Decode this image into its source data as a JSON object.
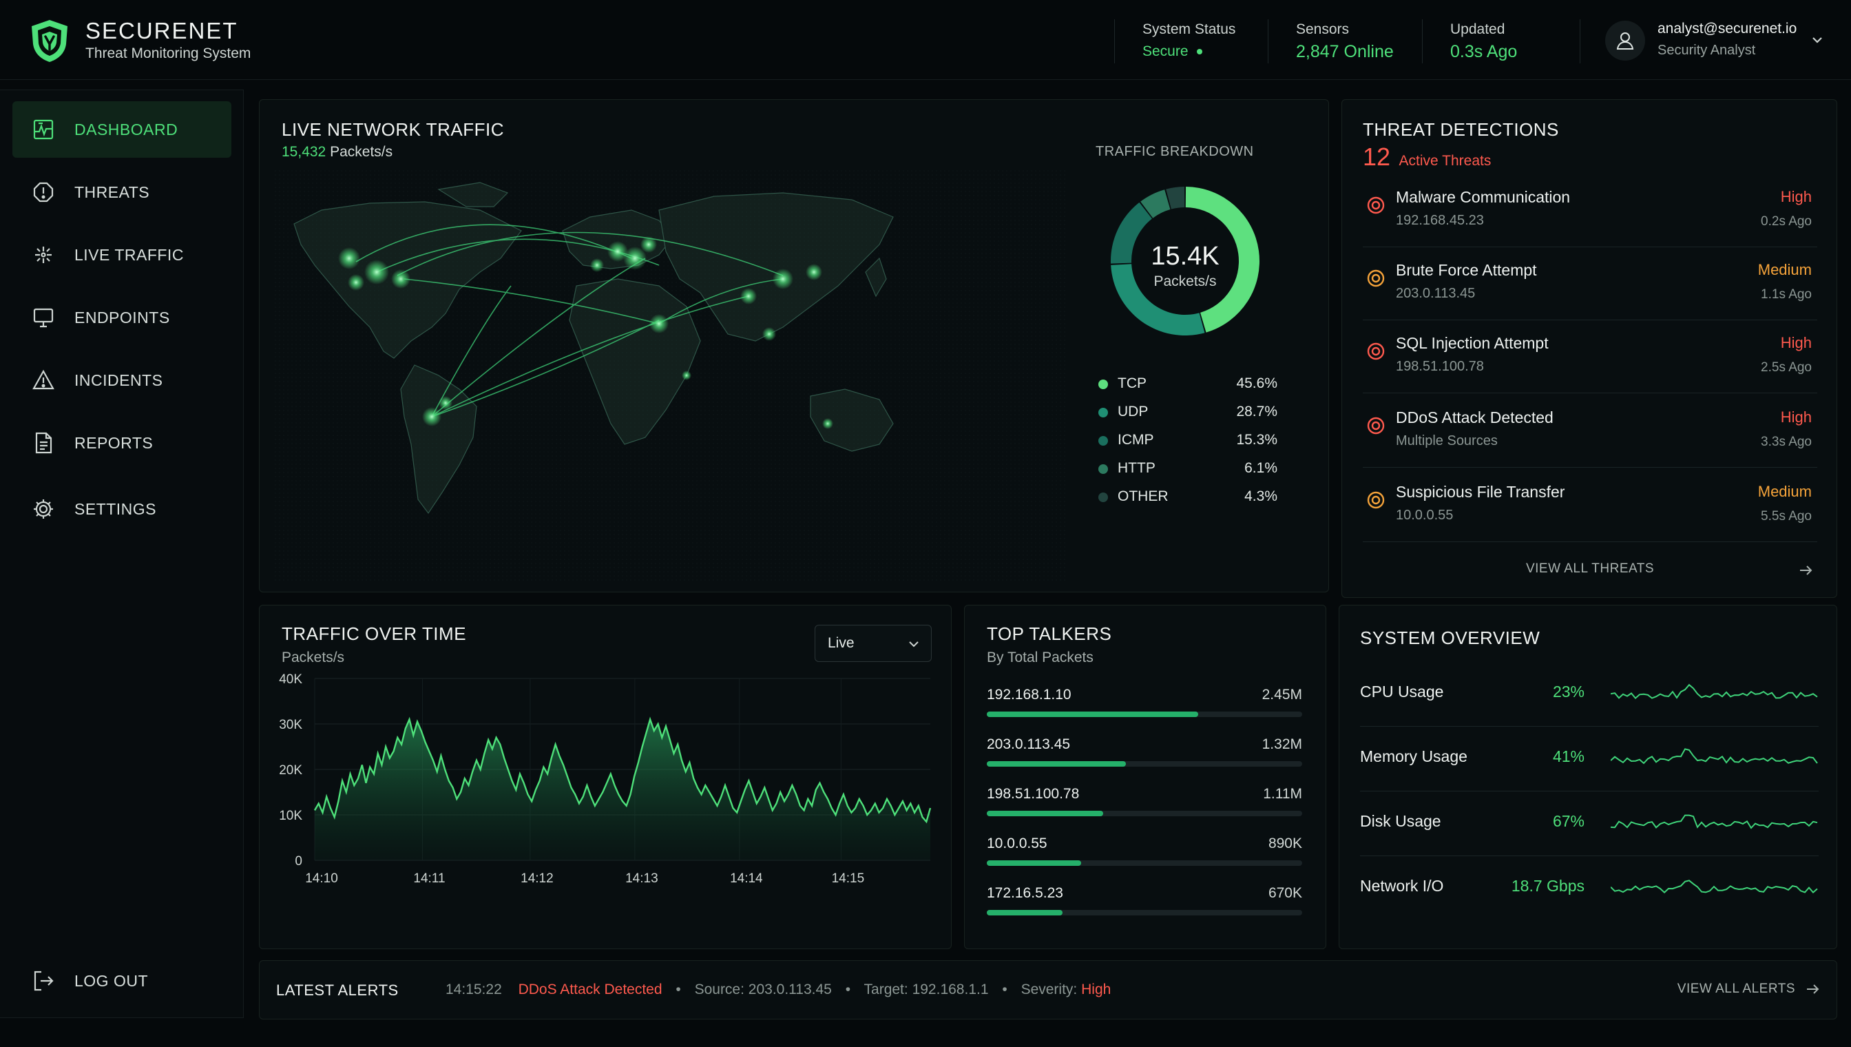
{
  "brand": {
    "name": "SECURENET",
    "subtitle": "Threat Monitoring System"
  },
  "header": {
    "system_status": {
      "label": "System Status",
      "value": "Secure"
    },
    "sensors": {
      "label": "Sensors",
      "value": "2,847 Online"
    },
    "updated": {
      "label": "Updated",
      "value": "0.3s Ago"
    },
    "user": {
      "email": "analyst@securenet.io",
      "role": "Security Analyst"
    }
  },
  "sidebar": {
    "items": [
      {
        "label": "DASHBOARD",
        "icon": "dashboard-icon",
        "active": true
      },
      {
        "label": "THREATS",
        "icon": "alert-icon"
      },
      {
        "label": "LIVE TRAFFIC",
        "icon": "traffic-icon"
      },
      {
        "label": "ENDPOINTS",
        "icon": "monitor-icon"
      },
      {
        "label": "INCIDENTS",
        "icon": "warning-icon"
      },
      {
        "label": "REPORTS",
        "icon": "document-icon"
      },
      {
        "label": "SETTINGS",
        "icon": "gear-icon"
      }
    ],
    "logout": "LOG OUT"
  },
  "network": {
    "title": "LIVE NETWORK TRAFFIC",
    "rate_value": "15,432",
    "rate_unit": "Packets/s",
    "breakdown_title": "TRAFFIC BREAKDOWN",
    "donut_value": "15.4K",
    "donut_unit": "Packets/s",
    "breakdown": [
      {
        "name": "TCP",
        "pct": "45.6%",
        "value": 45.6,
        "color": "#5ee07f"
      },
      {
        "name": "UDP",
        "pct": "28.7%",
        "value": 28.7,
        "color": "#1f8f74"
      },
      {
        "name": "ICMP",
        "pct": "15.3%",
        "value": 15.3,
        "color": "#1a6f5e"
      },
      {
        "name": "HTTP",
        "pct": "6.1%",
        "value": 6.1,
        "color": "#2c7a5f"
      },
      {
        "name": "OTHER",
        "pct": "4.3%",
        "value": 4.3,
        "color": "#22443f"
      }
    ]
  },
  "threats": {
    "title": "THREAT DETECTIONS",
    "count": "12",
    "count_label": "Active Threats",
    "items": [
      {
        "name": "Malware Communication",
        "source": "192.168.45.23",
        "severity": "High",
        "time": "0.2s Ago"
      },
      {
        "name": "Brute Force Attempt",
        "source": "203.0.113.45",
        "severity": "Medium",
        "time": "1.1s Ago"
      },
      {
        "name": "SQL Injection Attempt",
        "source": "198.51.100.78",
        "severity": "High",
        "time": "2.5s Ago"
      },
      {
        "name": "DDoS Attack Detected",
        "source": "Multiple Sources",
        "severity": "High",
        "time": "3.3s Ago"
      },
      {
        "name": "Suspicious File Transfer",
        "source": "10.0.0.55",
        "severity": "Medium",
        "time": "5.5s Ago"
      }
    ],
    "view_all": "VIEW ALL THREATS",
    "colors": {
      "High": "#ff5a4e",
      "Medium": "#f5a33a"
    }
  },
  "traffic": {
    "title": "TRAFFIC OVER TIME",
    "subtitle": "Packets/s",
    "select_value": "Live"
  },
  "chart_data": {
    "type": "area",
    "title": "TRAFFIC OVER TIME",
    "ylabel": "Packets/s",
    "ylim": [
      0,
      40000
    ],
    "yticks": [
      "0",
      "10K",
      "20K",
      "30K",
      "40K"
    ],
    "xticks": [
      "14:10",
      "14:11",
      "14:12",
      "14:13",
      "14:14",
      "14:15"
    ],
    "x_range": [
      "14:10",
      "14:15:50"
    ],
    "grid": true,
    "color": "#4ee07a",
    "series": [
      {
        "values": [
          11000,
          12500,
          10500,
          14000,
          11500,
          9500,
          13000,
          17500,
          15000,
          19000,
          16500,
          18000,
          21000,
          17000,
          20500,
          19000,
          23500,
          21000,
          25000,
          22500,
          24000,
          27000,
          25500,
          29000,
          31000,
          27500,
          30500,
          28500,
          26000,
          24000,
          22000,
          19500,
          23000,
          20000,
          17500,
          16000,
          13500,
          15000,
          18000,
          16500,
          19500,
          22000,
          20000,
          23500,
          26500,
          24500,
          27000,
          25500,
          22500,
          20000,
          17500,
          15500,
          19000,
          17000,
          14500,
          13000,
          15500,
          17500,
          20500,
          19000,
          22500,
          25500,
          23000,
          21000,
          18500,
          16000,
          14500,
          12500,
          14000,
          16500,
          14000,
          12000,
          13500,
          15000,
          17000,
          19000,
          16500,
          14500,
          13000,
          12000,
          14500,
          18500,
          21500,
          25000,
          28000,
          31000,
          28500,
          30000,
          27000,
          29500,
          26500,
          23500,
          25500,
          22000,
          19500,
          21500,
          18000,
          16000,
          14500,
          16500,
          15000,
          13500,
          12000,
          14000,
          16500,
          14000,
          11500,
          10500,
          13000,
          15500,
          17500,
          15000,
          12500,
          14000,
          16000,
          13500,
          11000,
          12500,
          15000,
          13000,
          14500,
          16500,
          14500,
          12000,
          11000,
          13500,
          12000,
          15500,
          17000,
          15000,
          13500,
          11500,
          10000,
          12500,
          14500,
          12000,
          10500,
          11500,
          13500,
          12000,
          10000,
          11000,
          12500,
          10500,
          11500,
          13500,
          12000,
          10000,
          11500,
          13000,
          11000,
          12500,
          10500,
          12000,
          9500,
          8500,
          11500
        ]
      }
    ]
  },
  "talkers": {
    "title": "TOP TALKERS",
    "subtitle": "By Total Packets",
    "items": [
      {
        "ip": "192.168.1.10",
        "value": "2.45M",
        "fraction": 0.67
      },
      {
        "ip": "203.0.113.45",
        "value": "1.32M",
        "fraction": 0.44
      },
      {
        "ip": "198.51.100.78",
        "value": "1.11M",
        "fraction": 0.37
      },
      {
        "ip": "10.0.0.55",
        "value": "890K",
        "fraction": 0.3
      },
      {
        "ip": "172.16.5.23",
        "value": "670K",
        "fraction": 0.24
      }
    ]
  },
  "system": {
    "title": "SYSTEM OVERVIEW",
    "items": [
      {
        "label": "CPU Usage",
        "value": "23%"
      },
      {
        "label": "Memory Usage",
        "value": "41%"
      },
      {
        "label": "Disk Usage",
        "value": "67%"
      },
      {
        "label": "Network I/O",
        "value": "18.7 Gbps"
      }
    ]
  },
  "alerts": {
    "title": "LATEST ALERTS",
    "time": "14:15:22",
    "event": "DDoS Attack Detected",
    "source_label": "Source:",
    "source": "203.0.113.45",
    "target_label": "Target:",
    "target": "192.168.1.1",
    "severity_label": "Severity:",
    "severity": "High",
    "view_all": "VIEW ALL ALERTS"
  }
}
